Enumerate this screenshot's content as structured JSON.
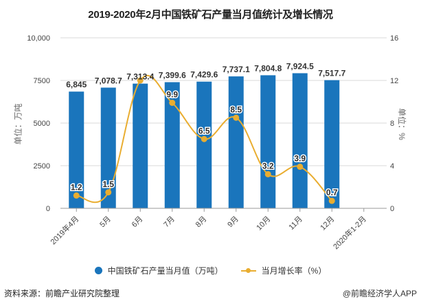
{
  "chart_data": {
    "type": "bar+line",
    "title": "2019-2020年2月中国铁矿石产量当月值统计及增长情况",
    "categories": [
      "2019年4月",
      "5月",
      "6月",
      "7月",
      "8月",
      "9月",
      "10月",
      "11月",
      "12月",
      "2020年1-2月"
    ],
    "series": [
      {
        "name": "中国铁矿石产量当月值（万吨）",
        "type": "bar",
        "axis": "left",
        "color": "#1a75bc",
        "values": [
          6845,
          7078.7,
          7313.4,
          7399.6,
          7429.6,
          7737.1,
          7804.8,
          7924.5,
          7517.7,
          null
        ],
        "labels": [
          "6,845",
          "7,078.7",
          "7,313.4",
          "7,399.6",
          "7,429.6",
          "7,737.1",
          "7,804.8",
          "7,924.5",
          "7,517.7",
          ""
        ]
      },
      {
        "name": "当月增长率（%）",
        "type": "line",
        "axis": "right",
        "color": "#e9ad30",
        "values": [
          1.2,
          1.5,
          12.0,
          9.9,
          6.5,
          8.5,
          3.2,
          3.9,
          0.7,
          null
        ],
        "labels": [
          "1.2",
          "1.5",
          "",
          "9.9",
          "6.5",
          "8.5",
          "3.2",
          "3.9",
          "0.7",
          ""
        ]
      }
    ],
    "y_left": {
      "label": "单位：万吨",
      "range": [
        0,
        10000
      ],
      "ticks": [
        0,
        2500,
        5000,
        7500,
        10000
      ],
      "tick_labels": [
        "0",
        "2500",
        "5000",
        "7500",
        "10,000"
      ]
    },
    "y_right": {
      "label": "单位：%",
      "range": [
        0,
        16
      ],
      "ticks": [
        0,
        4,
        8,
        12,
        16
      ],
      "tick_labels": [
        "0",
        "4",
        "8",
        "12",
        "16"
      ]
    },
    "grid": true,
    "legend_position": "bottom"
  },
  "legend": {
    "bar_label": "中国铁矿石产量当月值（万吨）",
    "line_label": "当月增长率（%）"
  },
  "footer": {
    "source": "资料来源：前瞻产业研究院整理",
    "credit": "@前瞻经济学人APP"
  }
}
